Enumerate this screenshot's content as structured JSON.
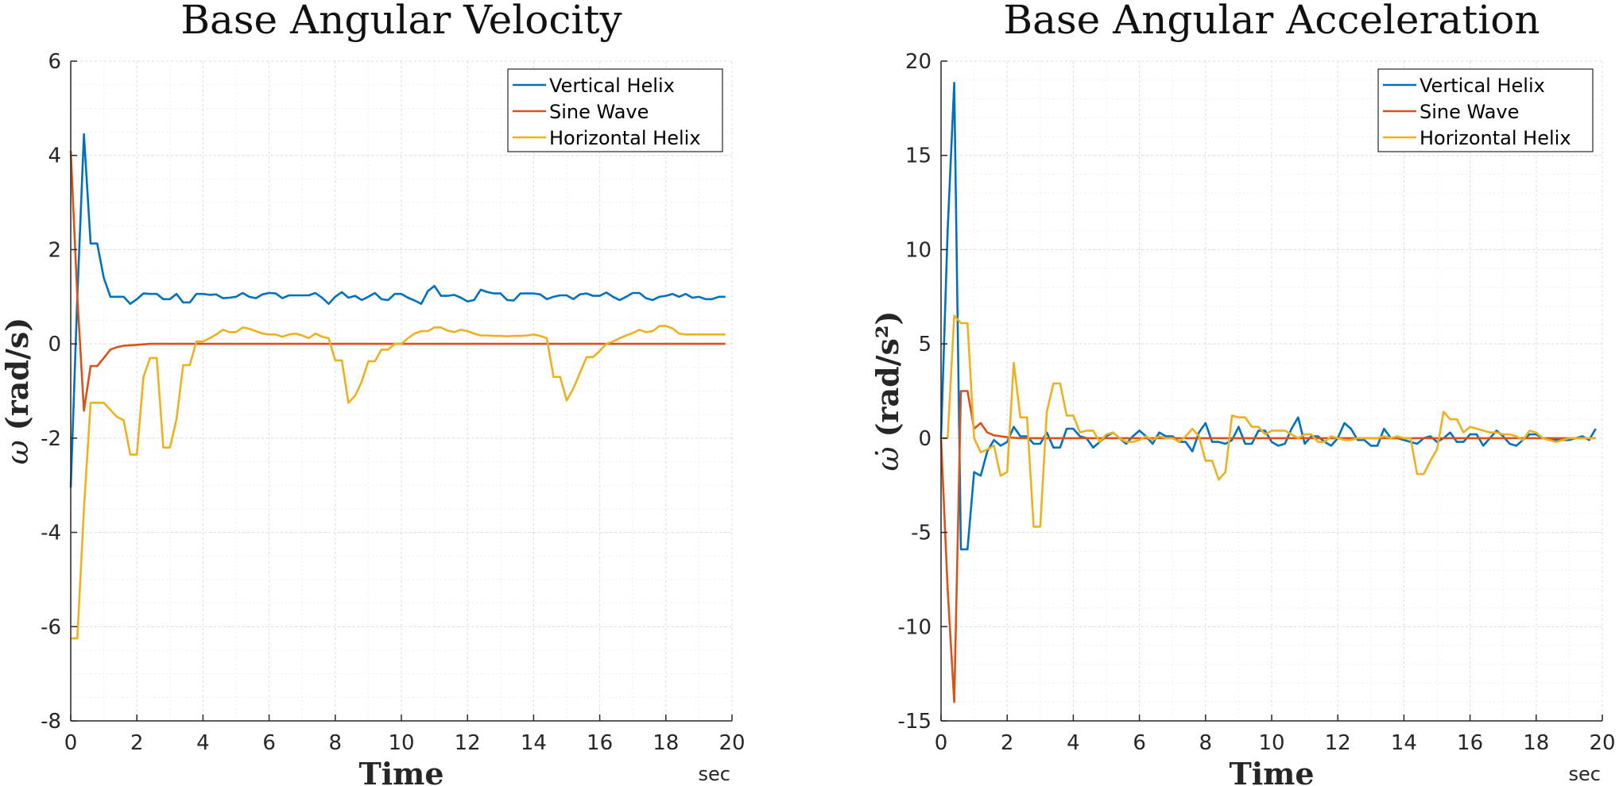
{
  "chart_data": [
    {
      "type": "line",
      "title": "Base Angular Velocity",
      "xlabel": "Time",
      "x_unit": "sec",
      "ylabel_symbol": "ω",
      "ylabel_unit": "(rad/s)",
      "xlim": [
        0,
        20
      ],
      "ylim": [
        -8,
        6
      ],
      "xticks": [
        0,
        2,
        4,
        6,
        8,
        10,
        12,
        14,
        16,
        18,
        20
      ],
      "yticks": [
        -8,
        -6,
        -4,
        -2,
        0,
        2,
        4,
        6
      ],
      "grid": true,
      "legend_position": "top-right",
      "x": [
        0,
        0.2,
        0.4,
        0.6,
        0.8,
        1.0,
        1.2,
        1.4,
        1.6,
        1.8,
        2.0,
        2.2,
        2.4,
        2.6,
        2.8,
        3.0,
        3.2,
        3.4,
        3.6,
        3.8,
        4.0,
        4.2,
        4.4,
        4.6,
        4.8,
        5.0,
        5.2,
        5.4,
        5.6,
        5.8,
        6.0,
        6.2,
        6.4,
        6.6,
        6.8,
        7.0,
        7.2,
        7.4,
        7.6,
        7.8,
        8.0,
        8.2,
        8.4,
        8.6,
        8.8,
        9.0,
        9.2,
        9.4,
        9.6,
        9.8,
        10.0,
        10.2,
        10.4,
        10.6,
        10.8,
        11.0,
        11.2,
        11.4,
        11.6,
        11.8,
        12.0,
        12.2,
        12.4,
        12.6,
        12.8,
        13.0,
        13.2,
        13.4,
        13.6,
        13.8,
        14.0,
        14.2,
        14.4,
        14.6,
        14.8,
        15.0,
        15.2,
        15.4,
        15.6,
        15.8,
        16.0,
        16.2,
        16.4,
        16.6,
        16.8,
        17.0,
        17.2,
        17.4,
        17.6,
        17.8,
        18.0,
        18.2,
        18.4,
        18.6,
        18.8,
        19.0,
        19.2,
        19.4,
        19.6,
        19.8
      ],
      "series": [
        {
          "name": "Vertical Helix",
          "color": "#0072bd",
          "values": [
            -3.05,
            1.0,
            4.45,
            2.13,
            2.13,
            1.4,
            1.0,
            1.0,
            1.0,
            0.85,
            0.95,
            1.07,
            1.06,
            1.06,
            0.95,
            0.95,
            1.06,
            0.88,
            0.88,
            1.06,
            1.06,
            1.04,
            1.05,
            0.97,
            0.98,
            1.0,
            1.08,
            1.0,
            0.97,
            1.05,
            1.08,
            1.07,
            0.97,
            1.03,
            1.03,
            1.03,
            1.03,
            1.08,
            0.98,
            0.85,
            1.0,
            1.1,
            0.98,
            1.02,
            0.93,
            1.0,
            1.08,
            0.95,
            0.93,
            1.06,
            1.06,
            0.98,
            0.92,
            0.85,
            1.12,
            1.23,
            1.02,
            1.02,
            1.04,
            0.98,
            0.9,
            0.93,
            1.15,
            1.1,
            1.07,
            1.07,
            0.93,
            0.92,
            1.07,
            1.07,
            1.07,
            1.05,
            0.95,
            1.0,
            1.03,
            1.03,
            0.95,
            1.05,
            1.07,
            1.02,
            1.02,
            1.09,
            1.0,
            0.93,
            1.0,
            1.08,
            1.08,
            0.97,
            0.93,
            1.0,
            1.02,
            1.06,
            1.0,
            1.06,
            0.98,
            1.0,
            0.95,
            0.95,
            1.0,
            1.0
          ]
        },
        {
          "name": "Sine Wave",
          "color": "#d95319",
          "values": [
            4.1,
            1.0,
            -1.42,
            -0.47,
            -0.47,
            -0.3,
            -0.12,
            -0.07,
            -0.04,
            -0.03,
            -0.02,
            -0.01,
            0,
            0,
            0,
            0,
            0,
            0,
            0,
            0,
            0,
            0,
            0,
            0,
            0,
            0,
            0,
            0,
            0,
            0,
            0,
            0,
            0,
            0,
            0,
            0,
            0,
            0,
            0,
            0,
            0,
            0,
            0,
            0,
            0,
            0,
            0,
            0,
            0,
            0,
            0,
            0,
            0,
            0,
            0,
            0,
            0,
            0,
            0,
            0,
            0,
            0,
            0,
            0,
            0,
            0,
            0,
            0,
            0,
            0,
            0,
            0,
            0,
            0,
            0,
            0,
            0,
            0,
            0,
            0,
            0,
            0,
            0,
            0,
            0,
            0,
            0,
            0,
            0,
            0,
            0,
            0,
            0,
            0,
            0,
            0,
            0,
            0,
            0,
            0
          ]
        },
        {
          "name": "Horizontal Helix",
          "color": "#edb120",
          "values": [
            -6.25,
            -6.25,
            -3.5,
            -1.25,
            -1.25,
            -1.25,
            -1.4,
            -1.55,
            -1.62,
            -2.35,
            -2.35,
            -0.7,
            -0.3,
            -0.3,
            -2.2,
            -2.2,
            -1.6,
            -0.45,
            -0.45,
            0.05,
            0.05,
            0.12,
            0.2,
            0.3,
            0.25,
            0.25,
            0.35,
            0.32,
            0.27,
            0.22,
            0.2,
            0.2,
            0.15,
            0.2,
            0.22,
            0.18,
            0.12,
            0.22,
            0.15,
            0.12,
            -0.35,
            -0.35,
            -1.25,
            -1.1,
            -0.8,
            -0.37,
            -0.37,
            -0.12,
            -0.12,
            0,
            0,
            0.12,
            0.22,
            0.27,
            0.27,
            0.35,
            0.35,
            0.28,
            0.25,
            0.3,
            0.27,
            0.22,
            0.18,
            0.18,
            0.17,
            0.17,
            0.16,
            0.17,
            0.17,
            0.18,
            0.2,
            0.17,
            0.12,
            -0.7,
            -0.7,
            -1.2,
            -0.95,
            -0.62,
            -0.28,
            -0.28,
            -0.15,
            0.0,
            0.05,
            0.12,
            0.18,
            0.23,
            0.3,
            0.25,
            0.27,
            0.38,
            0.38,
            0.33,
            0.22,
            0.2,
            0.2,
            0.2,
            0.2,
            0.2,
            0.2,
            0.2
          ]
        }
      ]
    },
    {
      "type": "line",
      "title": "Base Angular Acceleration",
      "xlabel": "Time",
      "x_unit": "sec",
      "ylabel_symbol": "ω̇",
      "ylabel_unit": "(rad/s²)",
      "xlim": [
        0,
        20
      ],
      "ylim": [
        -15,
        20
      ],
      "xticks": [
        0,
        2,
        4,
        6,
        8,
        10,
        12,
        14,
        16,
        18,
        20
      ],
      "yticks": [
        -15,
        -10,
        -5,
        0,
        5,
        10,
        15,
        20
      ],
      "grid": true,
      "legend_position": "top-right",
      "x": [
        0,
        0.2,
        0.4,
        0.6,
        0.8,
        1.0,
        1.2,
        1.4,
        1.6,
        1.8,
        2.0,
        2.2,
        2.4,
        2.6,
        2.8,
        3.0,
        3.2,
        3.4,
        3.6,
        3.8,
        4.0,
        4.2,
        4.4,
        4.6,
        4.8,
        5.0,
        5.2,
        5.4,
        5.6,
        5.8,
        6.0,
        6.2,
        6.4,
        6.6,
        6.8,
        7.0,
        7.2,
        7.4,
        7.6,
        7.8,
        8.0,
        8.2,
        8.4,
        8.6,
        8.8,
        9.0,
        9.2,
        9.4,
        9.6,
        9.8,
        10.0,
        10.2,
        10.4,
        10.6,
        10.8,
        11.0,
        11.2,
        11.4,
        11.6,
        11.8,
        12.0,
        12.2,
        12.4,
        12.6,
        12.8,
        13.0,
        13.2,
        13.4,
        13.6,
        13.8,
        14.0,
        14.2,
        14.4,
        14.6,
        14.8,
        15.0,
        15.2,
        15.4,
        15.6,
        15.8,
        16.0,
        16.2,
        16.4,
        16.6,
        16.8,
        17.0,
        17.2,
        17.4,
        17.6,
        17.8,
        18.0,
        18.2,
        18.4,
        18.6,
        18.8,
        19.0,
        19.2,
        19.4,
        19.6,
        19.8
      ],
      "series": [
        {
          "name": "Vertical Helix",
          "color": "#0072bd",
          "values": [
            0,
            11.0,
            18.85,
            -5.9,
            -5.9,
            -1.8,
            -2.0,
            -0.7,
            -0.1,
            -0.4,
            -0.2,
            0.6,
            0.1,
            0.1,
            -0.3,
            -0.3,
            0.3,
            -0.5,
            -0.5,
            0.5,
            0.5,
            0.1,
            0.0,
            -0.5,
            -0.2,
            0.1,
            0.3,
            0.0,
            -0.3,
            0.1,
            0.4,
            0.1,
            -0.3,
            0.3,
            0.1,
            0.1,
            -0.2,
            -0.2,
            -0.7,
            0.3,
            0.8,
            -0.2,
            -0.2,
            -0.3,
            -0.1,
            0.6,
            -0.3,
            -0.3,
            0.4,
            0.4,
            -0.2,
            -0.4,
            -0.3,
            0.5,
            1.1,
            -0.3,
            0.1,
            0.1,
            -0.2,
            -0.4,
            0.0,
            0.8,
            0.5,
            -0.1,
            -0.1,
            -0.4,
            -0.4,
            0.5,
            0.0,
            0.0,
            -0.1,
            -0.2,
            -0.3,
            0.0,
            0.1,
            -0.2,
            0.0,
            0.3,
            -0.2,
            -0.2,
            0.2,
            0.2,
            -0.4,
            0.0,
            0.4,
            0.1,
            -0.3,
            -0.4,
            -0.1,
            0.2,
            0.2,
            0.0,
            -0.1,
            -0.1,
            -0.1,
            -0.1,
            0.0,
            0.1,
            -0.1,
            0.5
          ]
        },
        {
          "name": "Sine Wave",
          "color": "#d95319",
          "values": [
            0,
            -8.0,
            -14.0,
            2.5,
            2.5,
            0.5,
            0.8,
            0.3,
            0.15,
            0.1,
            0.05,
            0.02,
            0,
            0,
            0,
            0,
            0,
            0,
            0,
            0,
            0,
            0,
            0,
            0,
            0,
            0,
            0,
            0,
            0,
            0,
            0,
            0,
            0,
            0,
            0,
            0,
            0,
            0,
            0,
            0,
            0,
            0,
            0,
            0,
            0,
            0,
            0,
            0,
            0,
            0,
            0,
            0,
            0,
            0,
            0,
            0,
            0,
            0,
            0,
            0,
            0,
            0,
            0,
            0,
            0,
            0,
            0,
            0,
            0,
            0,
            0,
            0,
            0,
            0,
            0,
            0,
            0,
            0,
            0,
            0,
            0,
            0,
            0,
            0,
            0,
            0,
            0,
            0,
            0,
            0,
            0,
            0,
            0,
            0,
            0,
            0,
            0,
            0,
            0,
            0
          ]
        },
        {
          "name": "Horizontal Helix",
          "color": "#edb120",
          "values": [
            0,
            0,
            6.5,
            6.1,
            6.1,
            0.0,
            -0.75,
            -0.6,
            -0.4,
            -2.0,
            -1.8,
            4.0,
            1.1,
            1.1,
            -4.7,
            -4.7,
            1.4,
            2.9,
            2.9,
            1.2,
            1.2,
            0.3,
            0.4,
            0.4,
            -0.2,
            0.2,
            0.3,
            0.0,
            -0.2,
            -0.2,
            -0.1,
            0.1,
            -0.1,
            0.1,
            0.0,
            0.0,
            -0.2,
            0.1,
            0.5,
            0.1,
            -1.2,
            -1.2,
            -2.2,
            -1.8,
            1.2,
            1.1,
            1.1,
            0.6,
            0.6,
            0.2,
            0.4,
            0.4,
            0.4,
            0.2,
            0.0,
            0.2,
            0.2,
            -0.2,
            -0.2,
            0.1,
            0.0,
            -0.1,
            -0.1,
            0.0,
            0.0,
            0.0,
            0.0,
            0.1,
            0.0,
            0.1,
            0.0,
            0.0,
            -1.9,
            -1.9,
            -1.2,
            -0.6,
            1.4,
            1.0,
            1.0,
            0.3,
            0.6,
            0.5,
            0.4,
            0.3,
            0.3,
            0.2,
            0.2,
            0.1,
            -0.1,
            0.4,
            0.3,
            0.0,
            -0.1,
            -0.2,
            -0.1,
            0.0,
            0.0,
            0.0,
            0.0,
            0.0
          ]
        }
      ]
    }
  ]
}
